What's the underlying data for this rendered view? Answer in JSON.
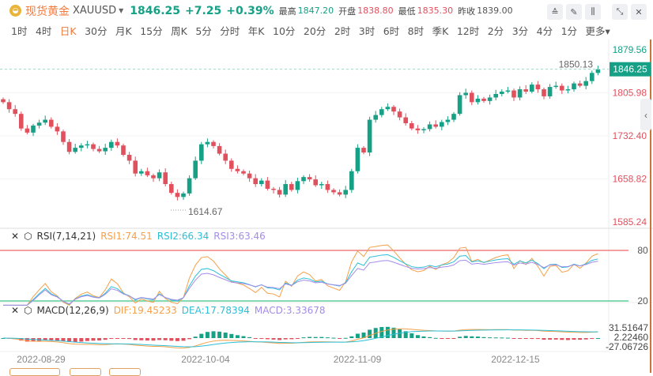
{
  "header": {
    "logo_icon": "gold-coin-icon",
    "name": "现货黄金",
    "symbol": "XAUUSD",
    "price": "1846.25",
    "change": "+7.25",
    "change_pct": "+0.39%",
    "high_label": "最高",
    "high": "1847.20",
    "open_label": "开盘",
    "open": "1838.80",
    "low_label": "最低",
    "low": "1835.30",
    "prev_label": "昨收",
    "prev": "1839.00"
  },
  "tools": [
    {
      "icon": "indicator-icon",
      "g": "≙"
    },
    {
      "icon": "draw-pen-icon",
      "g": "✎"
    },
    {
      "icon": "candle-type-icon",
      "g": "⫼"
    },
    {
      "icon": "collapse-icon",
      "g": "⤡"
    },
    {
      "icon": "close-icon",
      "g": "✕"
    }
  ],
  "tabs": [
    "1时",
    "4时",
    "日K",
    "30分",
    "月K",
    "15分",
    "周K",
    "5分",
    "分时",
    "年K",
    "10分",
    "20分",
    "2时",
    "3时",
    "6时",
    "8时",
    "季K",
    "12时",
    "2分",
    "3分",
    "4分",
    "1分",
    "更多▾"
  ],
  "active_tab": 2,
  "colors": {
    "up": "#16a085",
    "down": "#e0505d",
    "rsi1": "#f5a04a",
    "rsi2": "#2bbfd6",
    "rsi3": "#a48ce8",
    "dif": "#f5a04a",
    "dea": "#2bbfd6"
  },
  "price_axis": {
    "ticks": [
      "1879.56",
      "1805.98",
      "1732.40",
      "1658.82",
      "1585.24"
    ],
    "current": "1846.25",
    "max_label": "1850.13",
    "min_label": "1614.67"
  },
  "chart_data": {
    "type": "candlestick",
    "ylim": [
      1585.24,
      1879.56
    ],
    "closes": [
      1790,
      1778,
      1770,
      1745,
      1738,
      1750,
      1755,
      1760,
      1748,
      1740,
      1722,
      1705,
      1712,
      1716,
      1718,
      1710,
      1706,
      1712,
      1722,
      1716,
      1700,
      1690,
      1668,
      1672,
      1665,
      1660,
      1670,
      1650,
      1635,
      1628,
      1634,
      1660,
      1690,
      1718,
      1722,
      1715,
      1702,
      1690,
      1676,
      1672,
      1668,
      1660,
      1650,
      1656,
      1642,
      1640,
      1632,
      1650,
      1640,
      1655,
      1662,
      1658,
      1648,
      1650,
      1640,
      1636,
      1632,
      1640,
      1672,
      1712,
      1704,
      1760,
      1768,
      1778,
      1782,
      1774,
      1764,
      1754,
      1745,
      1742,
      1744,
      1752,
      1748,
      1756,
      1760,
      1770,
      1802,
      1806,
      1790,
      1796,
      1792,
      1798,
      1804,
      1808,
      1810,
      1798,
      1812,
      1808,
      1820,
      1812,
      1800,
      1816,
      1818,
      1810,
      1812,
      1822,
      1818,
      1826,
      1840,
      1846.25
    ],
    "first_open": 1795,
    "dates": [
      "2022-08-29",
      "2022-10-04",
      "2022-11-09",
      "2022-12-15"
    ]
  },
  "rsi": {
    "label": "RSI(7,14,21)",
    "rsi1": "RSI1:74.51",
    "rsi2": "RSI2:66.34",
    "rsi3": "RSI3:63.46",
    "levels": [
      "80",
      "20"
    ]
  },
  "macd": {
    "label": "MACD(12,26,9)",
    "dif": "DIF:19.45233",
    "dea": "DEA:17.78394",
    "macd": "MACD:3.33678",
    "ticks": [
      "31.51647",
      "2.22460",
      "-27.06726"
    ]
  }
}
